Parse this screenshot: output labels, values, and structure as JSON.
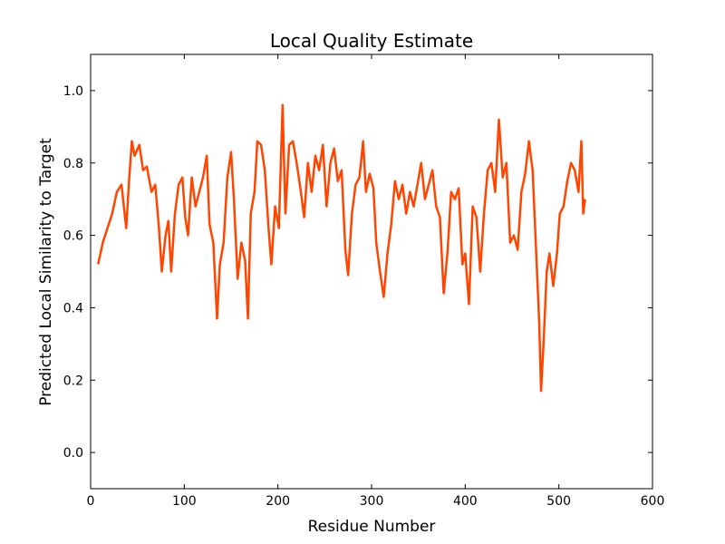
{
  "chart_data": {
    "type": "line",
    "title": "Local Quality Estimate",
    "xlabel": "Residue Number",
    "ylabel": "Predicted Local Similarity to Target",
    "xlim": [
      0,
      600
    ],
    "ylim": [
      -0.1,
      1.1
    ],
    "xticks": [
      0,
      100,
      200,
      300,
      400,
      500,
      600
    ],
    "yticks": [
      {
        "value": 0,
        "label": "0.0"
      },
      {
        "value": 0.2,
        "label": "0.2"
      },
      {
        "value": 0.4,
        "label": "0.4"
      },
      {
        "value": 0.6,
        "label": "0.6"
      },
      {
        "value": 0.8,
        "label": "0.8"
      },
      {
        "value": 1,
        "label": "1.0"
      }
    ],
    "grid": false,
    "x": [
      8,
      13,
      18,
      23,
      28,
      33,
      38,
      41,
      44,
      47,
      52,
      56,
      60,
      65,
      69,
      73,
      76,
      80,
      83,
      86,
      90,
      94,
      98,
      101,
      104,
      108,
      112,
      116,
      120,
      124,
      127,
      131,
      135,
      138,
      142,
      146,
      150,
      153,
      157,
      161,
      165,
      168,
      171,
      175,
      178,
      182,
      186,
      190,
      193,
      197,
      201,
      205,
      208,
      212,
      216,
      220,
      224,
      228,
      232,
      236,
      240,
      244,
      248,
      252,
      256,
      260,
      264,
      268,
      272,
      275,
      279,
      283,
      287,
      291,
      294,
      298,
      302,
      305,
      309,
      313,
      317,
      321,
      325,
      329,
      333,
      337,
      341,
      345,
      349,
      353,
      357,
      361,
      365,
      369,
      373,
      377,
      381,
      385,
      389,
      393,
      397,
      400,
      404,
      408,
      412,
      416,
      420,
      424,
      428,
      432,
      436,
      440,
      444,
      448,
      452,
      456,
      460,
      464,
      468,
      472,
      476,
      479,
      481,
      484,
      487,
      490,
      494,
      498,
      501,
      505,
      509,
      513,
      517,
      521,
      524,
      526,
      528
    ],
    "series": [
      {
        "color": "#ff4500",
        "values": [
          0.52,
          0.58,
          0.62,
          0.66,
          0.72,
          0.74,
          0.62,
          0.75,
          0.86,
          0.82,
          0.85,
          0.78,
          0.79,
          0.72,
          0.74,
          0.62,
          0.5,
          0.6,
          0.64,
          0.5,
          0.66,
          0.74,
          0.76,
          0.65,
          0.6,
          0.76,
          0.68,
          0.72,
          0.76,
          0.82,
          0.63,
          0.58,
          0.37,
          0.52,
          0.58,
          0.76,
          0.83,
          0.7,
          0.48,
          0.58,
          0.53,
          0.37,
          0.66,
          0.72,
          0.86,
          0.85,
          0.78,
          0.62,
          0.52,
          0.68,
          0.62,
          0.96,
          0.66,
          0.85,
          0.86,
          0.8,
          0.73,
          0.65,
          0.8,
          0.72,
          0.82,
          0.78,
          0.85,
          0.68,
          0.8,
          0.84,
          0.75,
          0.78,
          0.56,
          0.49,
          0.66,
          0.74,
          0.76,
          0.86,
          0.72,
          0.77,
          0.73,
          0.58,
          0.5,
          0.43,
          0.55,
          0.63,
          0.75,
          0.7,
          0.74,
          0.66,
          0.72,
          0.68,
          0.74,
          0.8,
          0.7,
          0.74,
          0.78,
          0.68,
          0.65,
          0.44,
          0.55,
          0.72,
          0.7,
          0.73,
          0.52,
          0.55,
          0.41,
          0.68,
          0.65,
          0.5,
          0.66,
          0.78,
          0.8,
          0.72,
          0.92,
          0.76,
          0.8,
          0.58,
          0.6,
          0.56,
          0.72,
          0.77,
          0.86,
          0.78,
          0.54,
          0.36,
          0.17,
          0.32,
          0.5,
          0.55,
          0.46,
          0.55,
          0.66,
          0.68,
          0.75,
          0.8,
          0.78,
          0.72,
          0.86,
          0.66,
          0.7
        ]
      }
    ]
  }
}
